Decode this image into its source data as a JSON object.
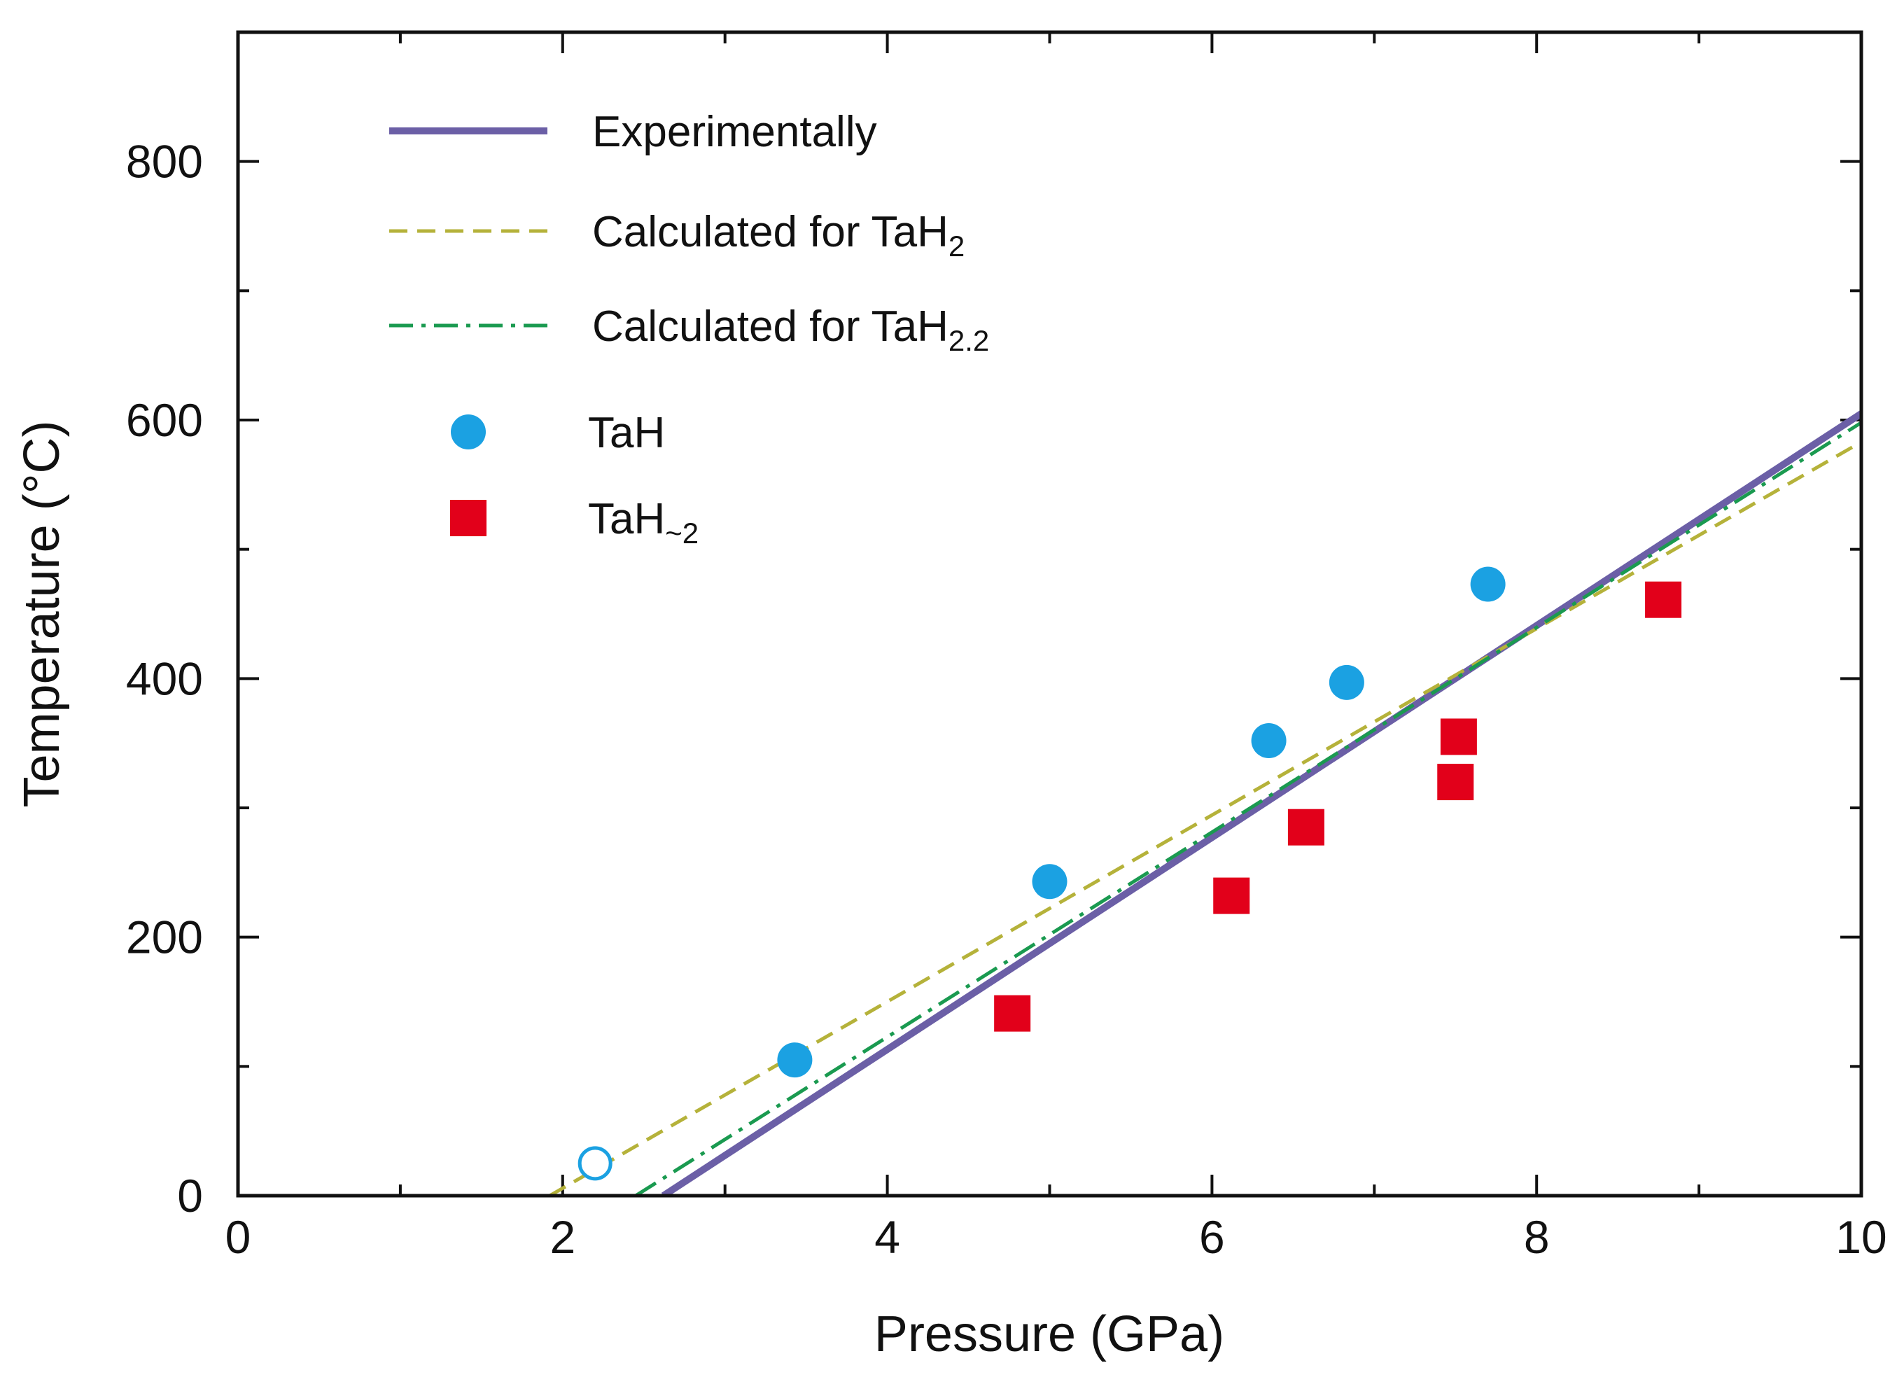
{
  "chart_data": {
    "type": "scatter",
    "xlabel": "Pressure (GPa)",
    "ylabel": "Temperature (°C)",
    "xlim": [
      0,
      10
    ],
    "ylim": [
      0,
      900
    ],
    "x_ticks": [
      0,
      2,
      4,
      6,
      8,
      10
    ],
    "y_ticks": [
      0,
      200,
      400,
      600,
      800
    ],
    "x_tick_labels": [
      "0",
      "2",
      "4",
      "6",
      "8",
      "10"
    ],
    "y_tick_labels": [
      "0",
      "200",
      "400",
      "600",
      "800"
    ],
    "legend_position": "top-left",
    "lines": [
      {
        "name": "Experimentally",
        "style": "solid",
        "color": "#6b5fa6",
        "legend_text": "Experimentally",
        "legend_sub": "",
        "points": [
          [
            2.62,
            0
          ],
          [
            10,
            605
          ]
        ]
      },
      {
        "name": "Calculated for TaH2",
        "style": "dashed",
        "color": "#b5b23a",
        "legend_text": "Calculated for TaH",
        "legend_sub": "2",
        "points": [
          [
            1.92,
            0
          ],
          [
            10,
            583
          ]
        ]
      },
      {
        "name": "Calculated for TaH2.2",
        "style": "dashdot",
        "color": "#1a9a50",
        "legend_text": "Calculated for TaH",
        "legend_sub": "2.2",
        "points": [
          [
            2.45,
            0
          ],
          [
            10,
            598
          ]
        ]
      }
    ],
    "scatter_series": [
      {
        "name": "TaH",
        "marker": "circle",
        "color": "#1ba1e2",
        "legend_text": "TaH",
        "legend_sub": "",
        "points": [
          {
            "x": 2.2,
            "y": 25,
            "filled": false
          },
          {
            "x": 3.43,
            "y": 105,
            "filled": true
          },
          {
            "x": 5.0,
            "y": 243,
            "filled": true
          },
          {
            "x": 6.35,
            "y": 352,
            "filled": true
          },
          {
            "x": 6.83,
            "y": 397,
            "filled": true
          },
          {
            "x": 7.7,
            "y": 473,
            "filled": true
          }
        ]
      },
      {
        "name": "TaH~2",
        "marker": "square",
        "color": "#e2001a",
        "legend_text": "TaH",
        "legend_sub": "~2",
        "points": [
          {
            "x": 4.77,
            "y": 141,
            "filled": true
          },
          {
            "x": 6.12,
            "y": 232,
            "filled": true
          },
          {
            "x": 6.58,
            "y": 285,
            "filled": true
          },
          {
            "x": 7.5,
            "y": 320,
            "filled": true
          },
          {
            "x": 7.52,
            "y": 355,
            "filled": true
          },
          {
            "x": 8.78,
            "y": 461,
            "filled": true
          }
        ]
      }
    ]
  }
}
